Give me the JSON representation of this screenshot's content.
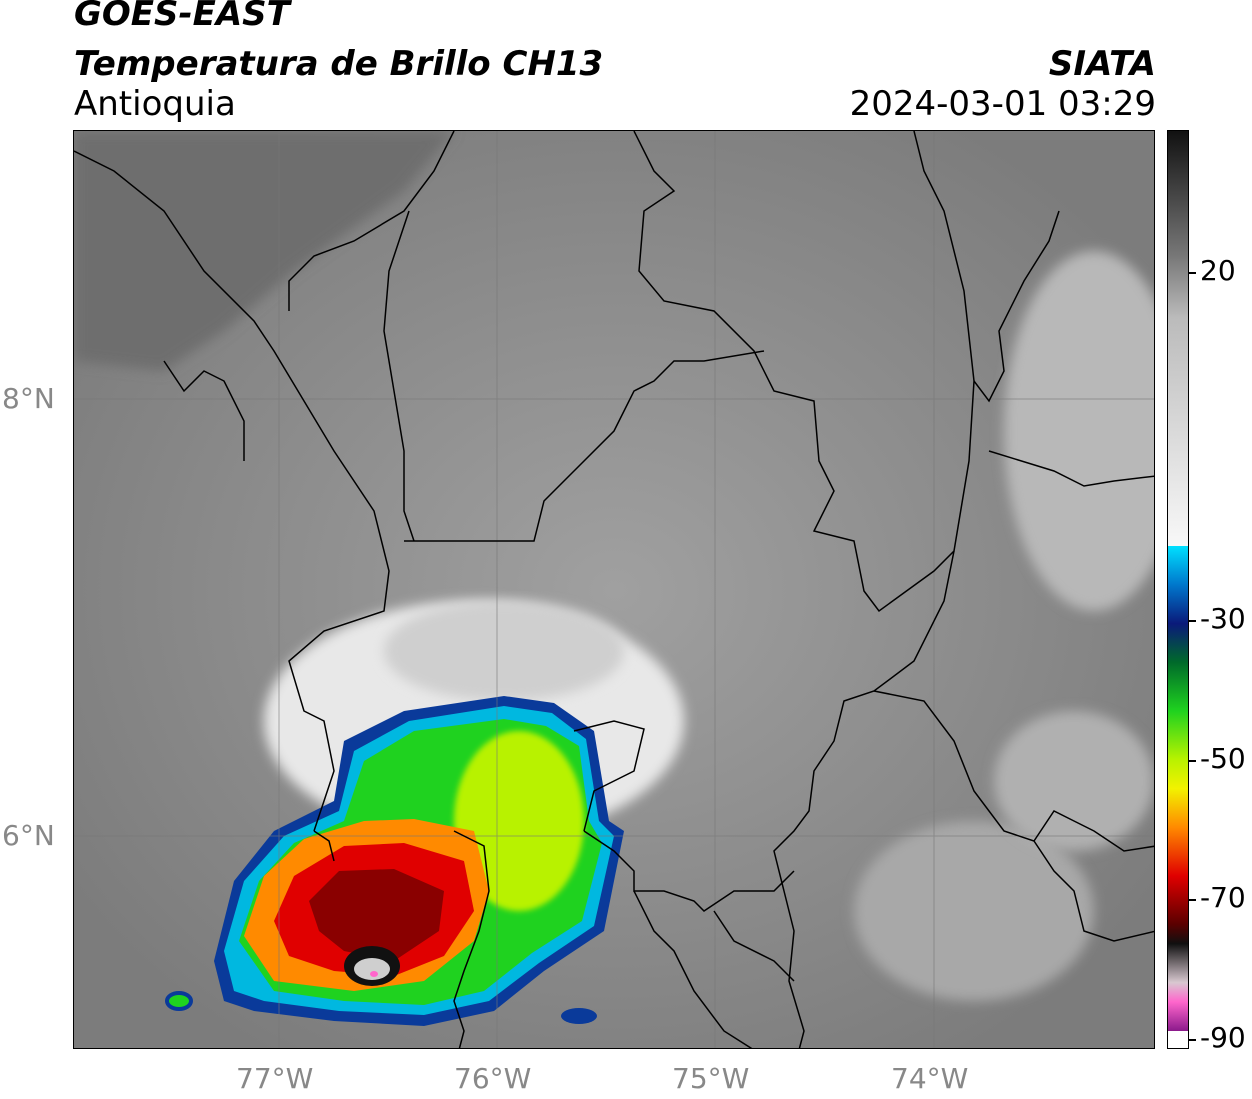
{
  "header": {
    "satellite": "GOES-EAST",
    "product": "Temperatura de Brillo CH13",
    "region": "Antioquia",
    "organization": "SIATA",
    "datetime": "2024-03-01 03:29"
  },
  "axes": {
    "lat_labels": [
      "8°N",
      "6°N"
    ],
    "lon_labels": [
      "77°W",
      "76°W",
      "75°W",
      "74°W"
    ]
  },
  "colorbar": {
    "tick_labels": [
      "20",
      "-30",
      "-50",
      "-70",
      "-90"
    ],
    "colors": {
      "warm_gray": "#5a5a5a",
      "cold_white": "#f4f4f4",
      "cyan": "#00e0ff",
      "blue": "#0a2a8a",
      "green": "#1fd21f",
      "yellow": "#f2f200",
      "orange": "#ff8a00",
      "red": "#e00000",
      "dark_red": "#5a0000",
      "black": "#101010",
      "pink": "#ff66cc",
      "purple": "#8b1a8b"
    }
  }
}
